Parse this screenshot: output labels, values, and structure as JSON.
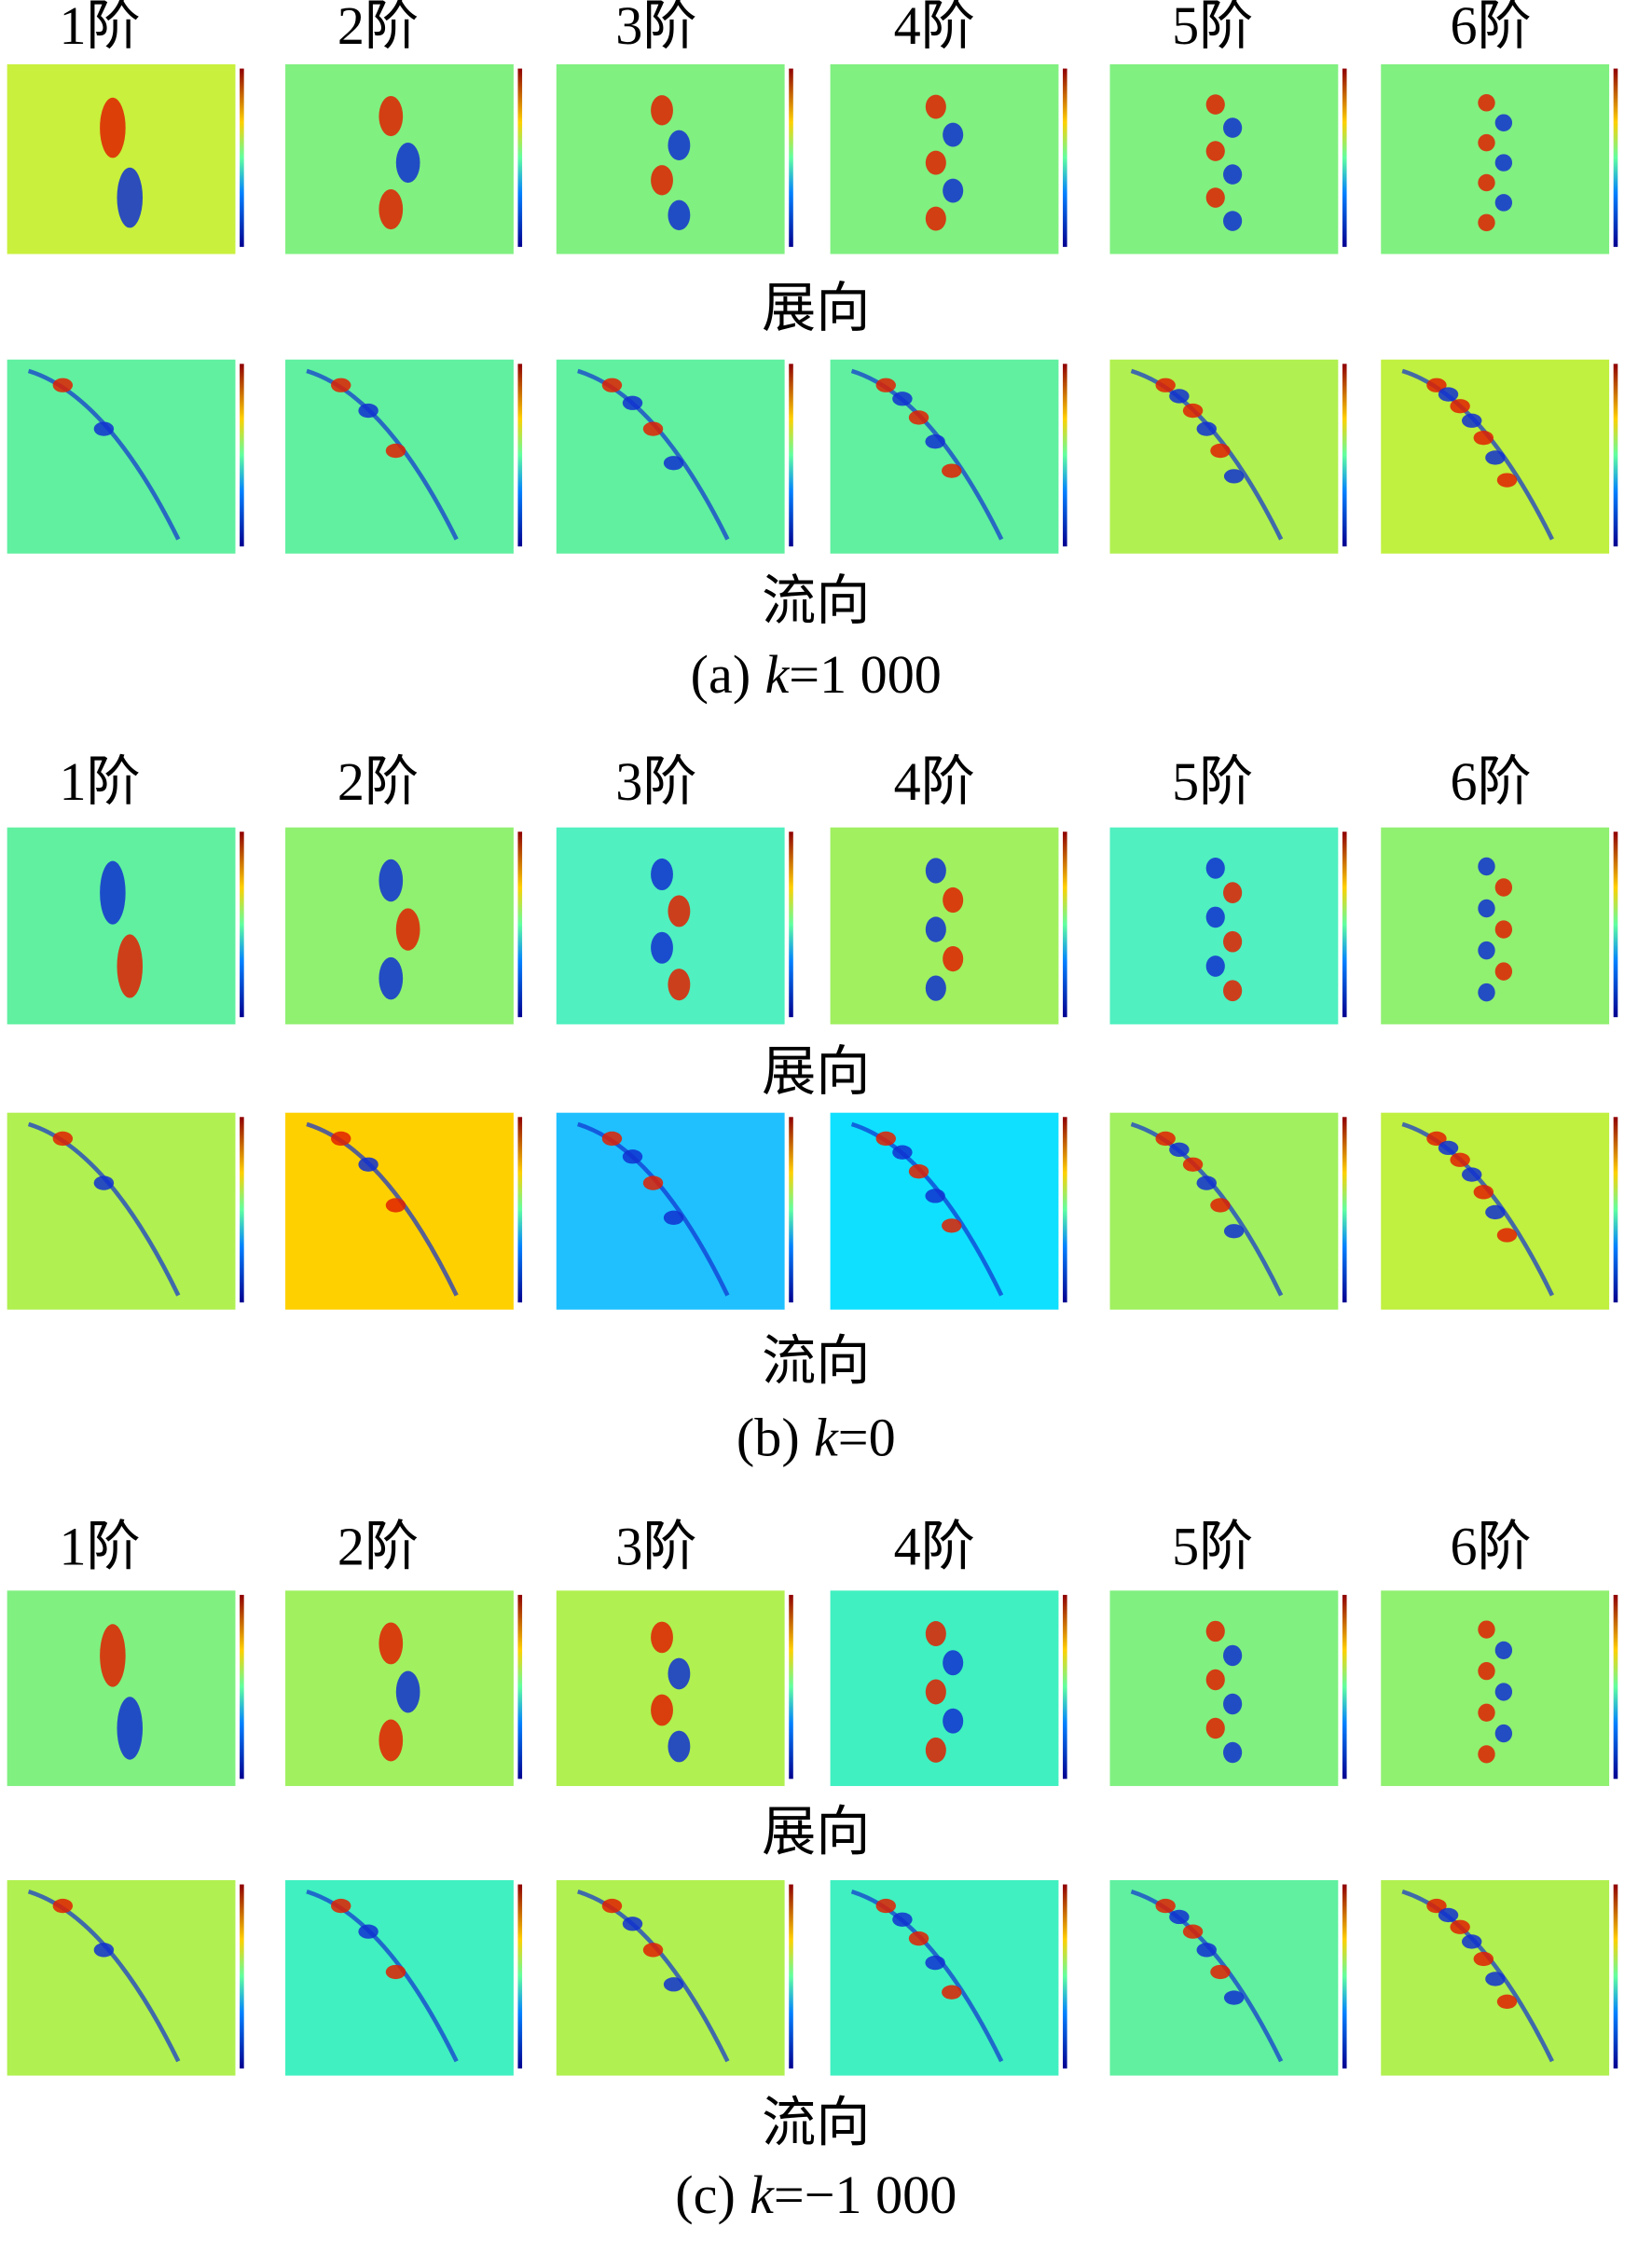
{
  "panels": [
    {
      "mode_labels": [
        "1阶",
        "2阶",
        "3阶",
        "4阶",
        "5阶",
        "6阶"
      ],
      "row_labels": [
        "展向",
        "流向"
      ],
      "caption": {
        "label": "(a)",
        "variable": "k",
        "value": "=1 000"
      }
    },
    {
      "mode_labels": [
        "1阶",
        "2阶",
        "3阶",
        "4阶",
        "5阶",
        "6阶"
      ],
      "row_labels": [
        "展向",
        "流向"
      ],
      "caption": {
        "label": "(b)",
        "variable": "k",
        "value": "=0"
      }
    },
    {
      "mode_labels": [
        "1阶",
        "2阶",
        "3阶",
        "4阶",
        "5阶",
        "6阶"
      ],
      "row_labels": [
        "展向",
        "流向"
      ],
      "caption": {
        "label": "(c)",
        "variable": "k",
        "value": "=−1 000"
      }
    }
  ]
}
